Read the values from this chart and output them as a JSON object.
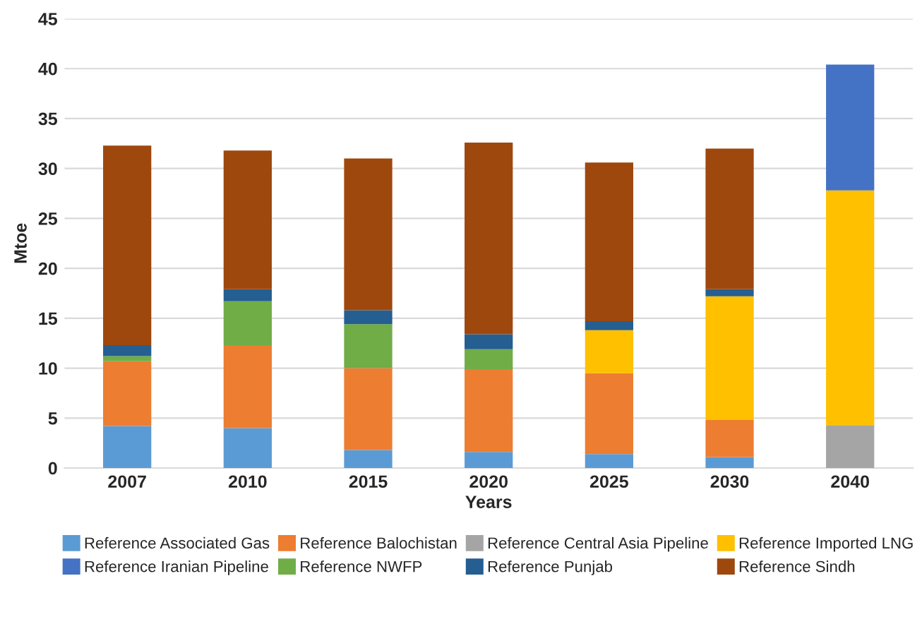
{
  "chart_data": {
    "type": "bar",
    "stacked": true,
    "xlabel": "Years",
    "ylabel": "Mtoe",
    "categories": [
      "2007",
      "2010",
      "2015",
      "2020",
      "2025",
      "2030",
      "2040"
    ],
    "series": [
      {
        "name": "Reference Associated Gas",
        "color": "#5b9bd5",
        "values": [
          4.2,
          4.0,
          1.8,
          1.6,
          1.4,
          1.1,
          0
        ]
      },
      {
        "name": "Reference Balochistan",
        "color": "#ed7d31",
        "values": [
          6.5,
          8.3,
          8.2,
          8.3,
          8.1,
          3.7,
          0
        ]
      },
      {
        "name": "Reference Central Asia Pipeline",
        "color": "#a5a5a5",
        "values": [
          0,
          0,
          0,
          0,
          0,
          0,
          4.3
        ]
      },
      {
        "name": "Reference Imported LNG",
        "color": "#ffc000",
        "values": [
          0,
          0,
          0,
          0,
          4.3,
          12.4,
          23.5
        ]
      },
      {
        "name": "Reference Iranian Pipeline",
        "color": "#4472c4",
        "values": [
          0,
          0,
          0,
          0,
          0,
          0,
          12.6
        ]
      },
      {
        "name": "Reference NWFP",
        "color": "#70ad47",
        "values": [
          0.5,
          4.4,
          4.4,
          2.0,
          0,
          0,
          0
        ]
      },
      {
        "name": "Reference Punjab",
        "color": "#255e91",
        "values": [
          1.1,
          1.2,
          1.4,
          1.5,
          0.9,
          0.7,
          0
        ]
      },
      {
        "name": "Reference Sindh",
        "color": "#9e480e",
        "values": [
          20.0,
          13.9,
          15.2,
          19.2,
          15.9,
          14.1,
          0
        ]
      }
    ],
    "ylim": [
      0,
      45
    ],
    "yticks": [
      0,
      5,
      10,
      15,
      20,
      25,
      30,
      35,
      40,
      45
    ],
    "grid": "y",
    "legend": "bottom"
  }
}
